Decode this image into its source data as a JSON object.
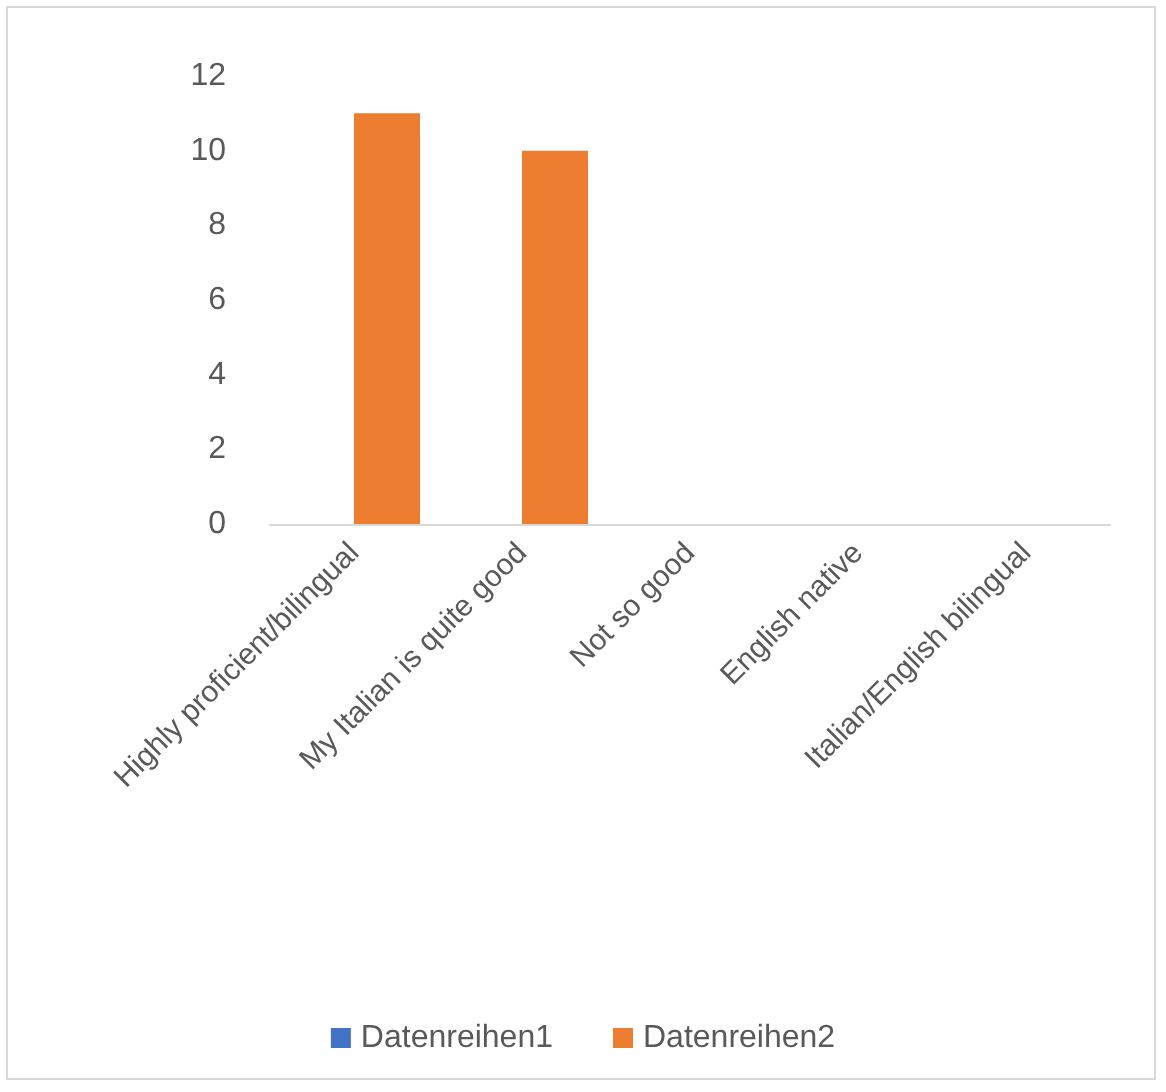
{
  "chart_data": {
    "type": "bar",
    "categories": [
      "Highly proficient/bilingual",
      "My Italian is quite good",
      "Not so good",
      "English native",
      "Italian/English bilingual"
    ],
    "series": [
      {
        "name": "Datenreihen1",
        "color": "#4472c4",
        "values": [
          0,
          0,
          0,
          0,
          0
        ]
      },
      {
        "name": "Datenreihen2",
        "color": "#ed7d31",
        "values": [
          11,
          10,
          0,
          0,
          0
        ]
      }
    ],
    "ylim": [
      0,
      12
    ],
    "yticks": [
      0,
      2,
      4,
      6,
      8,
      10,
      12
    ],
    "grid": false,
    "legend": "bottom"
  }
}
